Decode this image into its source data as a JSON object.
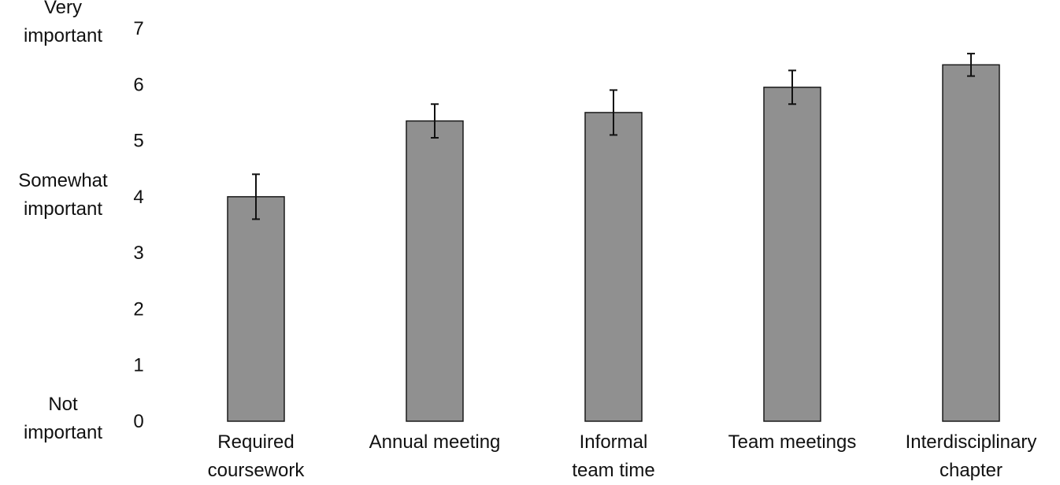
{
  "chart_data": {
    "type": "bar",
    "categories": [
      [
        "Required",
        "coursework"
      ],
      [
        "Annual meeting"
      ],
      [
        "Informal",
        "team time"
      ],
      [
        "Team meetings"
      ],
      [
        "Interdisciplinary",
        "chapter"
      ]
    ],
    "values": [
      4.0,
      5.35,
      5.5,
      5.95,
      6.35
    ],
    "error": [
      0.4,
      0.3,
      0.4,
      0.3,
      0.2
    ],
    "ylim": [
      0,
      7
    ],
    "yticks": [
      0,
      1,
      2,
      3,
      4,
      5,
      6,
      7
    ],
    "y_anchor_labels": [
      {
        "value": 7,
        "lines": [
          "Very",
          "important"
        ]
      },
      {
        "value": 4,
        "lines": [
          "Somewhat",
          "important"
        ]
      },
      {
        "value": 0,
        "lines": [
          "Not",
          "important"
        ]
      }
    ],
    "grid": false,
    "legend": "none",
    "bar_color": "#909090",
    "bar_edge_color": "#1a1a1a"
  }
}
